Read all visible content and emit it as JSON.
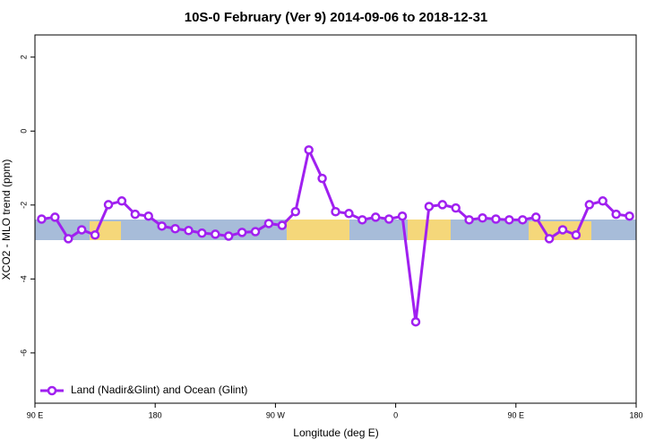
{
  "chart_data": {
    "type": "line",
    "title": "10S-0 February (Ver 9)   2014-09-06 to 2018-12-31",
    "xlabel": "Longitude (deg E)",
    "ylabel": "XCO2 - MLO trend (ppm)",
    "x": [
      95,
      105,
      115,
      125,
      135,
      145,
      155,
      165,
      175,
      185,
      195,
      205,
      215,
      225,
      235,
      245,
      255,
      265,
      275,
      285,
      295,
      305,
      315,
      325,
      335,
      345,
      355,
      365,
      375,
      385,
      395,
      405,
      415,
      425,
      435,
      445,
      455,
      465,
      475,
      485,
      495,
      505,
      515,
      525,
      535
    ],
    "series": [
      {
        "name": "Land (Nadir&Glint) and Ocean (Glint)",
        "color": "#a020f0",
        "values": [
          -2.38,
          -2.33,
          -2.91,
          -2.67,
          -2.81,
          -1.99,
          -1.89,
          -2.25,
          -2.3,
          -2.57,
          -2.64,
          -2.69,
          -2.76,
          -2.79,
          -2.84,
          -2.74,
          -2.72,
          -2.5,
          -2.55,
          -2.18,
          -0.51,
          -1.28,
          -2.18,
          -2.23,
          -2.4,
          -2.33,
          -2.38,
          -2.3,
          -5.16,
          -2.04,
          -1.99,
          -2.08,
          -2.4,
          -2.35,
          -2.38,
          -2.4,
          -2.4,
          -2.33,
          -2.91,
          -2.67,
          -2.81,
          -1.99,
          -1.89,
          -2.25,
          -2.3
        ]
      }
    ],
    "xlim": [
      90,
      540
    ],
    "ylim": [
      -7.36,
      2.6
    ],
    "xticks": [
      {
        "value": 90,
        "label": "90 E"
      },
      180,
      {
        "value": 270,
        "label": "90 W"
      },
      {
        "value": 360,
        "label": "0"
      },
      {
        "value": 450,
        "label": "90 E"
      },
      {
        "value": 540,
        "label": "180"
      }
    ],
    "yticks": [
      2,
      0,
      -2,
      -4,
      -6
    ],
    "legend": "bottom-left"
  }
}
